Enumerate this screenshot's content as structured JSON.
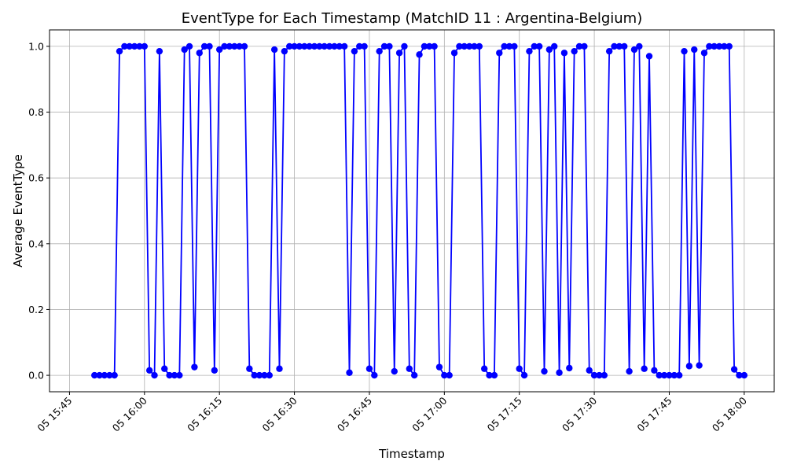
{
  "chart_data": {
    "type": "line",
    "title": "EventType for Each Timestamp (MatchID 11 : Argentina-Belgium)",
    "xlabel": "Timestamp",
    "ylabel": "Average EventType",
    "xlim": [
      "05 15:41",
      "05 18:06"
    ],
    "ylim": [
      -0.05,
      1.05
    ],
    "x_ticks": [
      "05 15:45",
      "05 16:00",
      "05 16:15",
      "05 16:30",
      "05 16:45",
      "05 17:00",
      "05 17:15",
      "05 17:30",
      "05 17:45",
      "05 18:00"
    ],
    "y_ticks": [
      "0.0",
      "0.2",
      "0.4",
      "0.6",
      "0.8",
      "1.0"
    ],
    "grid": true,
    "color": "#0000ff",
    "series": [
      {
        "x": [
          "05 15:50",
          "05 15:51",
          "05 15:52",
          "05 15:53",
          "05 15:54",
          "05 15:55",
          "05 15:56",
          "05 15:57",
          "05 15:58",
          "05 15:59",
          "05 16:00",
          "05 16:01",
          "05 16:02",
          "05 16:03",
          "05 16:04",
          "05 16:05",
          "05 16:06",
          "05 16:07",
          "05 16:08",
          "05 16:09",
          "05 16:10",
          "05 16:11",
          "05 16:12",
          "05 16:13",
          "05 16:14",
          "05 16:15",
          "05 16:16",
          "05 16:17",
          "05 16:18",
          "05 16:19",
          "05 16:20",
          "05 16:21",
          "05 16:22",
          "05 16:23",
          "05 16:24",
          "05 16:25",
          "05 16:26",
          "05 16:27",
          "05 16:28",
          "05 16:29",
          "05 16:30",
          "05 16:31",
          "05 16:32",
          "05 16:33",
          "05 16:34",
          "05 16:35",
          "05 16:36",
          "05 16:37",
          "05 16:38",
          "05 16:39",
          "05 16:40",
          "05 16:41",
          "05 16:42",
          "05 16:43",
          "05 16:44",
          "05 16:45",
          "05 16:46",
          "05 16:47",
          "05 16:48",
          "05 16:49",
          "05 16:50",
          "05 16:51",
          "05 16:52",
          "05 16:53",
          "05 16:54",
          "05 16:55",
          "05 16:56",
          "05 16:57",
          "05 16:58",
          "05 16:59",
          "05 17:00",
          "05 17:01",
          "05 17:02",
          "05 17:03",
          "05 17:04",
          "05 17:05",
          "05 17:06",
          "05 17:07",
          "05 17:08",
          "05 17:09",
          "05 17:10",
          "05 17:11",
          "05 17:12",
          "05 17:13",
          "05 17:14",
          "05 17:15",
          "05 17:16",
          "05 17:17",
          "05 17:18",
          "05 17:19",
          "05 17:20",
          "05 17:21",
          "05 17:22",
          "05 17:23",
          "05 17:24",
          "05 17:25",
          "05 17:26",
          "05 17:27",
          "05 17:28",
          "05 17:29",
          "05 17:30",
          "05 17:31",
          "05 17:32",
          "05 17:33",
          "05 17:34",
          "05 17:35",
          "05 17:36",
          "05 17:37",
          "05 17:38",
          "05 17:39",
          "05 17:40",
          "05 17:41",
          "05 17:42",
          "05 17:43",
          "05 17:44",
          "05 17:45",
          "05 17:46",
          "05 17:47",
          "05 17:48",
          "05 17:49",
          "05 17:50",
          "05 17:51",
          "05 17:52",
          "05 17:53",
          "05 17:54",
          "05 17:55",
          "05 17:56",
          "05 17:57",
          "05 17:58",
          "05 17:59",
          "05 18:00"
        ],
        "y": [
          0,
          0,
          0,
          0,
          0,
          0.985,
          1,
          1,
          1,
          1,
          1,
          0.015,
          0,
          0.985,
          0.02,
          0,
          0,
          0,
          0.99,
          1,
          0.025,
          0.98,
          1,
          1,
          0.015,
          0.99,
          1,
          1,
          1,
          1,
          1,
          0.02,
          0,
          0,
          0,
          0,
          0.99,
          0.02,
          0.985,
          1,
          1,
          1,
          1,
          1,
          1,
          1,
          1,
          1,
          1,
          1,
          1,
          0.008,
          0.985,
          1,
          1,
          0.02,
          0,
          0.985,
          1,
          1,
          0.012,
          0.98,
          1,
          0.02,
          0,
          0.975,
          1,
          1,
          1,
          0.025,
          0,
          0,
          0.98,
          1,
          1,
          1,
          1,
          1,
          0.02,
          0,
          0,
          0.98,
          1,
          1,
          1,
          0.02,
          0,
          0.985,
          1,
          1,
          0.012,
          0.99,
          1,
          0.008,
          0.98,
          0.022,
          0.985,
          1,
          1,
          0.015,
          0,
          0,
          0,
          0.985,
          1,
          1,
          1,
          0.012,
          0.99,
          1,
          0.02,
          0.97,
          0.015,
          0,
          0,
          0,
          0,
          0,
          0.985,
          0.028,
          0.99,
          0.03,
          0.98,
          1,
          1,
          1,
          1,
          1,
          0.018,
          0,
          0
        ]
      }
    ]
  }
}
